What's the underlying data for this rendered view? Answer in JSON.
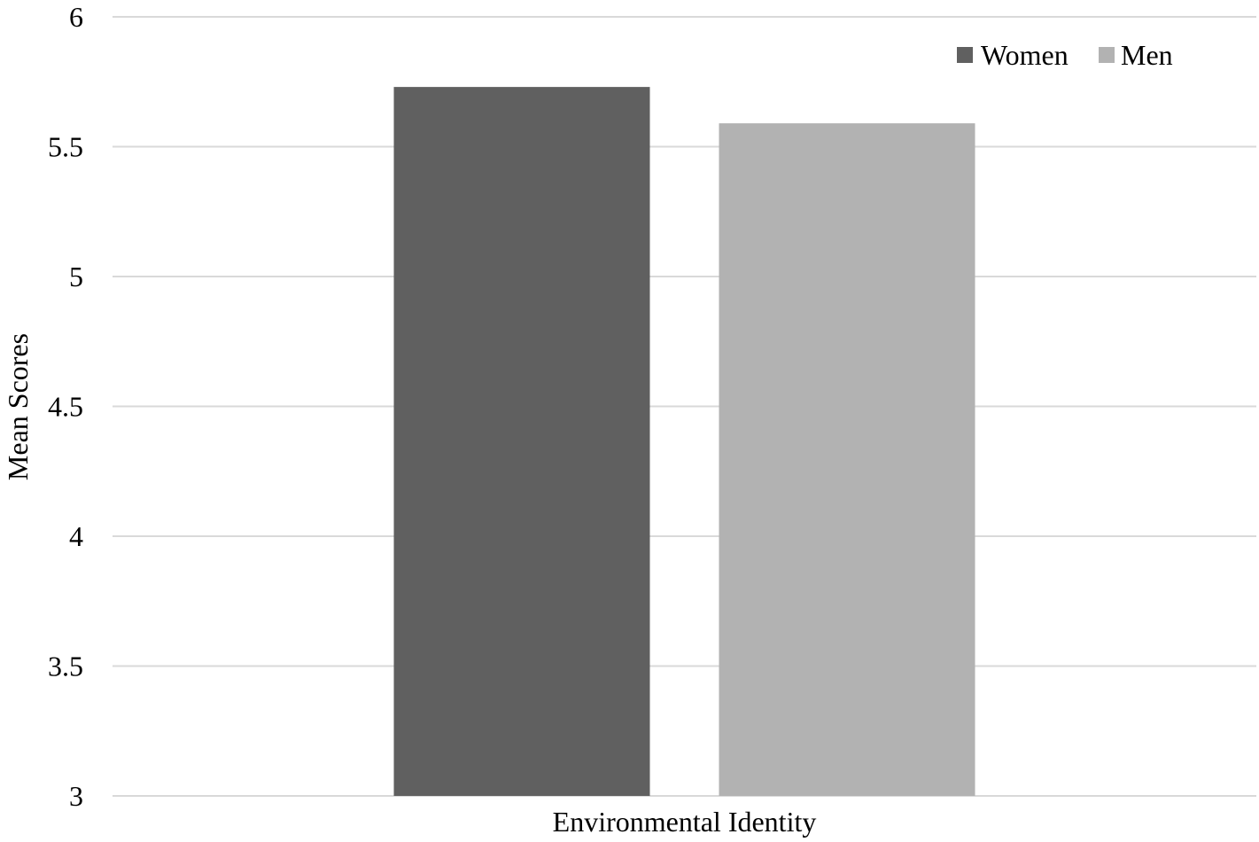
{
  "chart_data": {
    "type": "bar",
    "title": "",
    "xlabel": "",
    "ylabel": "Mean Scores",
    "categories": [
      "Environmental Identity"
    ],
    "series": [
      {
        "name": "Women",
        "values": [
          5.73
        ],
        "color": "#606060"
      },
      {
        "name": "Men",
        "values": [
          5.59
        ],
        "color": "#b2b2b2"
      }
    ],
    "ylim": [
      3,
      6
    ],
    "yticks": [
      "3",
      "3.5",
      "4",
      "4.5",
      "5",
      "5.5",
      "6"
    ],
    "grid": true,
    "legend_position": "top-right"
  }
}
